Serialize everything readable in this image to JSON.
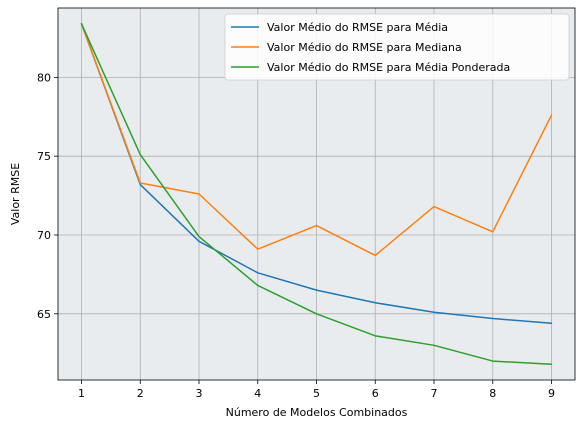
{
  "chart_data": {
    "type": "line",
    "title": "",
    "xlabel": "Número de Modelos Combinados",
    "ylabel": "Valor RMSE",
    "x": [
      1,
      2,
      3,
      4,
      5,
      6,
      7,
      8,
      9
    ],
    "xlim": [
      0.6,
      9.4
    ],
    "ylim": [
      60.8,
      84.4
    ],
    "xticks": [
      1,
      2,
      3,
      4,
      5,
      6,
      7,
      8,
      9
    ],
    "yticks": [
      65,
      70,
      75,
      80
    ],
    "grid": true,
    "legend_position": "top-right",
    "series": [
      {
        "name": "Valor Médio do RMSE para Média",
        "color": "#1f77b4",
        "values": [
          83.4,
          73.2,
          69.6,
          67.6,
          66.5,
          65.7,
          65.1,
          64.7,
          64.4
        ]
      },
      {
        "name": "Valor Médio do RMSE para Mediana",
        "color": "#ff7f0e",
        "values": [
          83.4,
          73.3,
          72.6,
          69.1,
          70.6,
          68.7,
          71.8,
          70.2,
          77.6
        ]
      },
      {
        "name": "Valor Médio do RMSE para Média Ponderada",
        "color": "#2ca02c",
        "values": [
          83.4,
          75.1,
          69.9,
          66.8,
          65.0,
          63.6,
          63.0,
          62.0,
          61.8
        ]
      }
    ],
    "colors": {
      "plot_background": "#e9ecef",
      "grid": "#b0b0b0",
      "legend_background": "#ffffff",
      "legend_border": "#cccccc"
    }
  }
}
